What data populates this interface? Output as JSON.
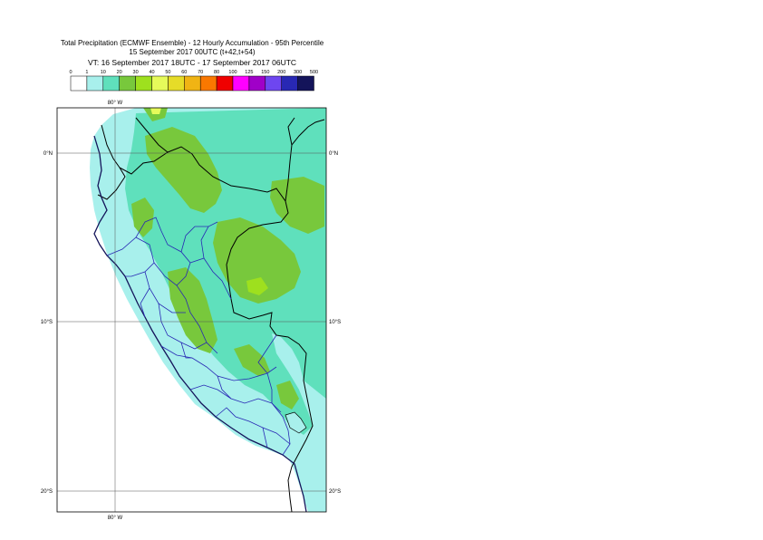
{
  "title": {
    "line1": "Total Precipitation (ECMWF Ensemble) - 12 Hourly Accumulation - 95th Percentile",
    "line2": "15 September 2017 00UTC (t+42,t+54)",
    "line3": "VT: 16 September 2017 18UTC - 17 September 2017 06UTC"
  },
  "legend": {
    "labels": [
      "0",
      "1",
      "10",
      "20",
      "30",
      "40",
      "50",
      "60",
      "70",
      "80",
      "100",
      "125",
      "150",
      "200",
      "300",
      "500"
    ],
    "colors": [
      "#ffffff",
      "#a8f0ec",
      "#5fe0bc",
      "#78c83c",
      "#9ee01e",
      "#e6fa5a",
      "#e6dc28",
      "#f0b414",
      "#fa7800",
      "#f00000",
      "#ff00ff",
      "#a000c8",
      "#6e46f0",
      "#2828b4",
      "#14145a"
    ]
  },
  "map": {
    "lon_labels": [
      "80° W",
      "80° W"
    ],
    "lat_labels": [
      "0°N",
      "10°S",
      "20°S"
    ],
    "lat_labels_right": [
      "0°N",
      "10°S",
      "20°S"
    ],
    "land_color": "#a8f0ec",
    "medium_color": "#5fe0bc",
    "heavy_color": "#78c83c",
    "peak_color": "#e6fa5a"
  }
}
